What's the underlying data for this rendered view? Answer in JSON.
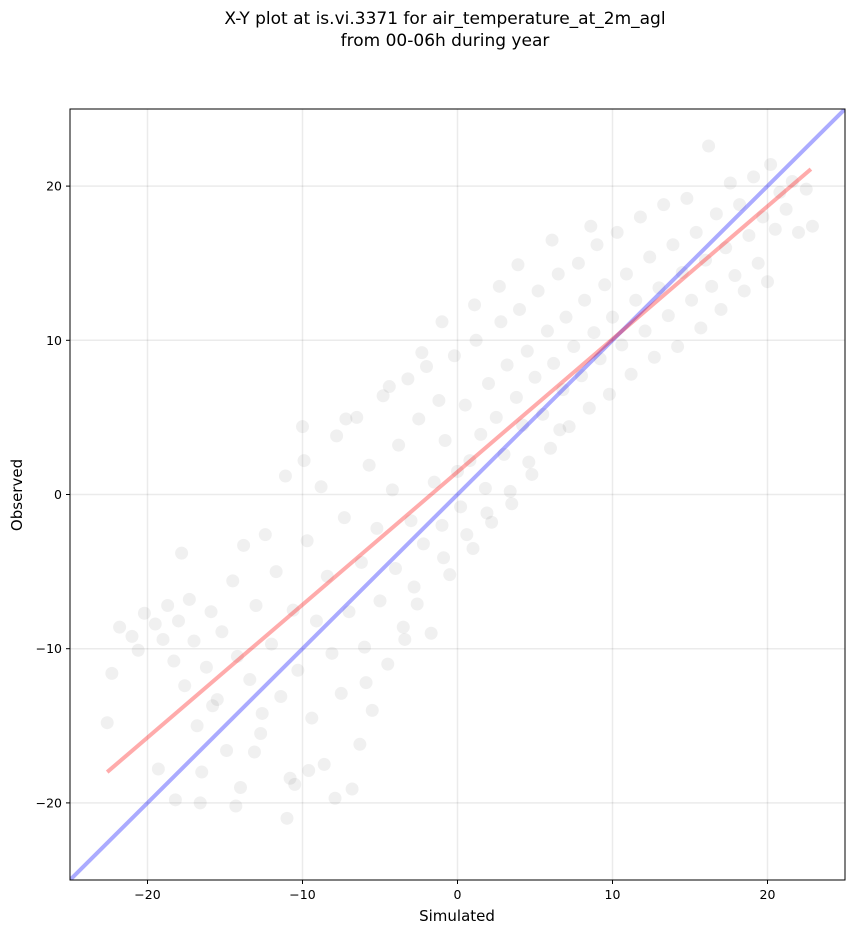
{
  "chart_data": {
    "type": "scatter",
    "title_line1": "X-Y plot at is.vi.3371 for air_temperature_at_2m_agl",
    "title_line2": "from 00-06h during year",
    "xlabel": "Simulated",
    "ylabel": "Observed",
    "xlim": [
      -25,
      25
    ],
    "ylim": [
      -25,
      25
    ],
    "xticks": [
      -20,
      -10,
      0,
      10,
      20
    ],
    "yticks": [
      -20,
      -10,
      0,
      10,
      20
    ],
    "xtick_labels": [
      "−20",
      "−10",
      "0",
      "10",
      "20"
    ],
    "ytick_labels": [
      "−20",
      "−10",
      "0",
      "10",
      "20"
    ],
    "grid": true,
    "series": [
      {
        "kind": "scatter",
        "color": "#000000",
        "opacity": 0.06,
        "points": [
          [
            -22.6,
            -14.8
          ],
          [
            -22.3,
            -11.6
          ],
          [
            -21.8,
            -8.6
          ],
          [
            -21.0,
            -9.2
          ],
          [
            -20.6,
            -10.1
          ],
          [
            -20.2,
            -7.7
          ],
          [
            -19.5,
            -8.4
          ],
          [
            -19.0,
            -9.4
          ],
          [
            -18.7,
            -7.2
          ],
          [
            -18.3,
            -10.8
          ],
          [
            -18.0,
            -8.2
          ],
          [
            -17.6,
            -12.4
          ],
          [
            -17.8,
            -3.8
          ],
          [
            -17.3,
            -6.8
          ],
          [
            -17.0,
            -9.5
          ],
          [
            -16.8,
            -15.0
          ],
          [
            -16.5,
            -18.0
          ],
          [
            -16.2,
            -11.2
          ],
          [
            -16.6,
            -20.0
          ],
          [
            -15.9,
            -7.6
          ],
          [
            -15.5,
            -13.3
          ],
          [
            -15.2,
            -8.9
          ],
          [
            -14.9,
            -16.6
          ],
          [
            -14.5,
            -5.6
          ],
          [
            -14.2,
            -10.5
          ],
          [
            -14.0,
            -19.0
          ],
          [
            -13.8,
            -3.3
          ],
          [
            -13.4,
            -12.0
          ],
          [
            -13.0,
            -7.2
          ],
          [
            -12.7,
            -15.5
          ],
          [
            -12.4,
            -2.6
          ],
          [
            -12.0,
            -9.7
          ],
          [
            -11.7,
            -5.0
          ],
          [
            -11.4,
            -13.1
          ],
          [
            -11.1,
            1.2
          ],
          [
            -10.8,
            -18.4
          ],
          [
            -10.6,
            -7.5
          ],
          [
            -10.3,
            -11.4
          ],
          [
            -10.0,
            4.4
          ],
          [
            -9.7,
            -3.0
          ],
          [
            -9.4,
            -14.5
          ],
          [
            -9.1,
            -8.2
          ],
          [
            -8.8,
            0.5
          ],
          [
            -8.6,
            -17.5
          ],
          [
            -8.4,
            -5.3
          ],
          [
            -8.1,
            -10.3
          ],
          [
            -7.8,
            3.8
          ],
          [
            -7.5,
            -12.9
          ],
          [
            -7.3,
            -1.5
          ],
          [
            -7.0,
            -7.6
          ],
          [
            -6.8,
            -19.1
          ],
          [
            -6.5,
            5.0
          ],
          [
            -6.2,
            -4.4
          ],
          [
            -6.0,
            -9.9
          ],
          [
            -5.7,
            1.9
          ],
          [
            -5.5,
            -14.0
          ],
          [
            -5.2,
            -2.2
          ],
          [
            -5.0,
            -6.9
          ],
          [
            -4.8,
            6.4
          ],
          [
            -4.5,
            -11.0
          ],
          [
            -4.2,
            0.3
          ],
          [
            -4.0,
            -4.8
          ],
          [
            -3.8,
            3.2
          ],
          [
            -3.5,
            -8.6
          ],
          [
            -3.2,
            7.5
          ],
          [
            -3.0,
            -1.7
          ],
          [
            -2.8,
            -6.0
          ],
          [
            -2.5,
            4.9
          ],
          [
            -2.2,
            -3.2
          ],
          [
            -2.0,
            8.3
          ],
          [
            -1.7,
            -9.0
          ],
          [
            -1.5,
            0.8
          ],
          [
            -1.2,
            6.1
          ],
          [
            -1.0,
            -2.0
          ],
          [
            -0.8,
            3.5
          ],
          [
            -0.5,
            -5.2
          ],
          [
            -0.2,
            9.0
          ],
          [
            0.0,
            1.5
          ],
          [
            0.2,
            -0.8
          ],
          [
            0.5,
            5.8
          ],
          [
            0.8,
            2.2
          ],
          [
            1.0,
            -3.5
          ],
          [
            1.2,
            10.0
          ],
          [
            1.5,
            3.9
          ],
          [
            1.8,
            0.4
          ],
          [
            2.0,
            7.2
          ],
          [
            2.2,
            -1.8
          ],
          [
            2.5,
            5.0
          ],
          [
            2.8,
            11.2
          ],
          [
            3.0,
            2.6
          ],
          [
            3.2,
            8.4
          ],
          [
            3.5,
            -0.6
          ],
          [
            3.8,
            6.3
          ],
          [
            4.0,
            12.0
          ],
          [
            4.2,
            4.5
          ],
          [
            4.5,
            9.3
          ],
          [
            4.8,
            1.3
          ],
          [
            5.0,
            7.6
          ],
          [
            5.2,
            13.2
          ],
          [
            5.5,
            5.2
          ],
          [
            5.8,
            10.6
          ],
          [
            6.0,
            3.0
          ],
          [
            6.2,
            8.5
          ],
          [
            6.5,
            14.3
          ],
          [
            6.8,
            6.8
          ],
          [
            7.0,
            11.5
          ],
          [
            7.2,
            4.4
          ],
          [
            7.5,
            9.6
          ],
          [
            7.8,
            15.0
          ],
          [
            8.0,
            7.7
          ],
          [
            8.2,
            12.6
          ],
          [
            8.5,
            5.6
          ],
          [
            8.8,
            10.5
          ],
          [
            9.0,
            16.2
          ],
          [
            9.2,
            8.8
          ],
          [
            9.5,
            13.6
          ],
          [
            9.8,
            6.5
          ],
          [
            10.0,
            11.5
          ],
          [
            10.3,
            17.0
          ],
          [
            10.6,
            9.7
          ],
          [
            10.9,
            14.3
          ],
          [
            11.2,
            7.8
          ],
          [
            11.5,
            12.6
          ],
          [
            11.8,
            18.0
          ],
          [
            12.1,
            10.6
          ],
          [
            12.4,
            15.4
          ],
          [
            12.7,
            8.9
          ],
          [
            13.0,
            13.4
          ],
          [
            13.3,
            18.8
          ],
          [
            13.6,
            11.6
          ],
          [
            13.9,
            16.2
          ],
          [
            14.2,
            9.6
          ],
          [
            14.5,
            14.4
          ],
          [
            14.8,
            19.2
          ],
          [
            15.1,
            12.6
          ],
          [
            15.4,
            17.0
          ],
          [
            15.7,
            10.8
          ],
          [
            16.0,
            15.2
          ],
          [
            16.2,
            22.6
          ],
          [
            16.4,
            13.5
          ],
          [
            16.7,
            18.2
          ],
          [
            17.0,
            12.0
          ],
          [
            17.3,
            16.0
          ],
          [
            17.6,
            20.2
          ],
          [
            17.9,
            14.2
          ],
          [
            18.2,
            18.8
          ],
          [
            18.5,
            13.2
          ],
          [
            18.8,
            16.8
          ],
          [
            19.1,
            20.6
          ],
          [
            19.4,
            15.0
          ],
          [
            19.7,
            18.0
          ],
          [
            20.0,
            13.8
          ],
          [
            20.2,
            21.4
          ],
          [
            20.5,
            17.2
          ],
          [
            20.8,
            19.6
          ],
          [
            21.2,
            18.5
          ],
          [
            21.6,
            20.3
          ],
          [
            22.0,
            17.0
          ],
          [
            22.5,
            19.8
          ],
          [
            22.9,
            17.4
          ],
          [
            -19.3,
            -17.8
          ],
          [
            -18.2,
            -19.8
          ],
          [
            -14.3,
            -20.2
          ],
          [
            -13.1,
            -16.7
          ],
          [
            -11.0,
            -21.0
          ],
          [
            -10.5,
            -18.8
          ],
          [
            -9.6,
            -17.9
          ],
          [
            -7.9,
            -19.7
          ],
          [
            -12.6,
            -14.2
          ],
          [
            -15.8,
            -13.7
          ],
          [
            -6.3,
            -16.2
          ],
          [
            -5.9,
            -12.2
          ],
          [
            -3.4,
            -9.4
          ],
          [
            -2.6,
            -7.1
          ],
          [
            -0.9,
            -4.1
          ],
          [
            0.6,
            -2.6
          ],
          [
            1.9,
            -1.2
          ],
          [
            3.4,
            0.2
          ],
          [
            4.6,
            2.1
          ],
          [
            6.6,
            4.2
          ],
          [
            -9.9,
            2.2
          ],
          [
            -7.2,
            4.9
          ],
          [
            -4.4,
            7.0
          ],
          [
            -2.3,
            9.2
          ],
          [
            -1.0,
            11.2
          ],
          [
            1.1,
            12.3
          ],
          [
            2.7,
            13.5
          ],
          [
            3.9,
            14.9
          ],
          [
            6.1,
            16.5
          ],
          [
            8.6,
            17.4
          ]
        ]
      },
      {
        "kind": "line",
        "color": "#0000ff",
        "opacity": 0.33,
        "x": [
          -25,
          25
        ],
        "y": [
          -25,
          25
        ]
      },
      {
        "kind": "line",
        "color": "#ff0000",
        "opacity": 0.33,
        "x": [
          -22.6,
          22.8
        ],
        "y": [
          -18.0,
          21.1
        ]
      }
    ]
  }
}
